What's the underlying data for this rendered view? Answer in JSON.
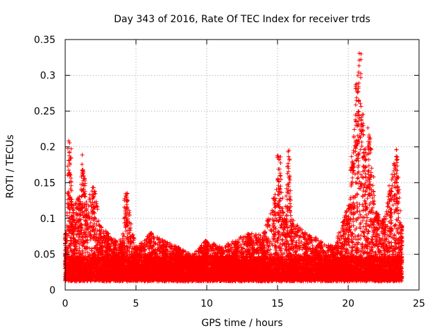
{
  "chart_data": {
    "type": "scatter",
    "title": "Day 343 of 2016, Rate Of TEC Index for receiver trds",
    "xlabel": "GPS time / hours",
    "ylabel": "ROTI / TECUs",
    "xlim": [
      0,
      25
    ],
    "ylim": [
      0,
      0.35
    ],
    "x_ticks": [
      0,
      5,
      10,
      15,
      20,
      25
    ],
    "y_ticks": [
      0,
      0.05,
      0.1,
      0.15,
      0.2,
      0.25,
      0.3,
      0.35
    ],
    "x_tick_labels": [
      "0",
      "5",
      "10",
      "15",
      "20",
      "25"
    ],
    "y_tick_labels": [
      "0",
      "0.05",
      "0.1",
      "0.15",
      "0.2",
      "0.25",
      "0.3",
      "0.35"
    ],
    "grid": true,
    "marker": "+",
    "marker_color": "#ff0000",
    "series": [
      {
        "name": "ROTI",
        "envelope": {
          "description": "approximate local maxima of the dense point cloud by hour",
          "x": [
            0,
            0.3,
            0.5,
            1,
            1.3,
            1.5,
            2,
            2.5,
            3,
            3.5,
            4,
            4.3,
            5,
            6,
            7,
            8,
            9,
            10,
            11,
            12,
            13,
            14,
            14.8,
            15.1,
            15.5,
            15.8,
            16,
            17,
            18,
            19,
            20,
            20.3,
            20.6,
            20.8,
            21,
            21.2,
            21.5,
            22,
            22.5,
            23,
            23.4,
            23.8
          ],
          "y": [
            0.08,
            0.21,
            0.12,
            0.13,
            0.19,
            0.12,
            0.15,
            0.09,
            0.08,
            0.07,
            0.07,
            0.14,
            0.06,
            0.08,
            0.07,
            0.06,
            0.05,
            0.07,
            0.06,
            0.07,
            0.08,
            0.08,
            0.13,
            0.19,
            0.1,
            0.2,
            0.1,
            0.08,
            0.07,
            0.06,
            0.12,
            0.19,
            0.29,
            0.34,
            0.26,
            0.2,
            0.23,
            0.11,
            0.1,
            0.15,
            0.2,
            0.09
          ]
        }
      }
    ]
  }
}
